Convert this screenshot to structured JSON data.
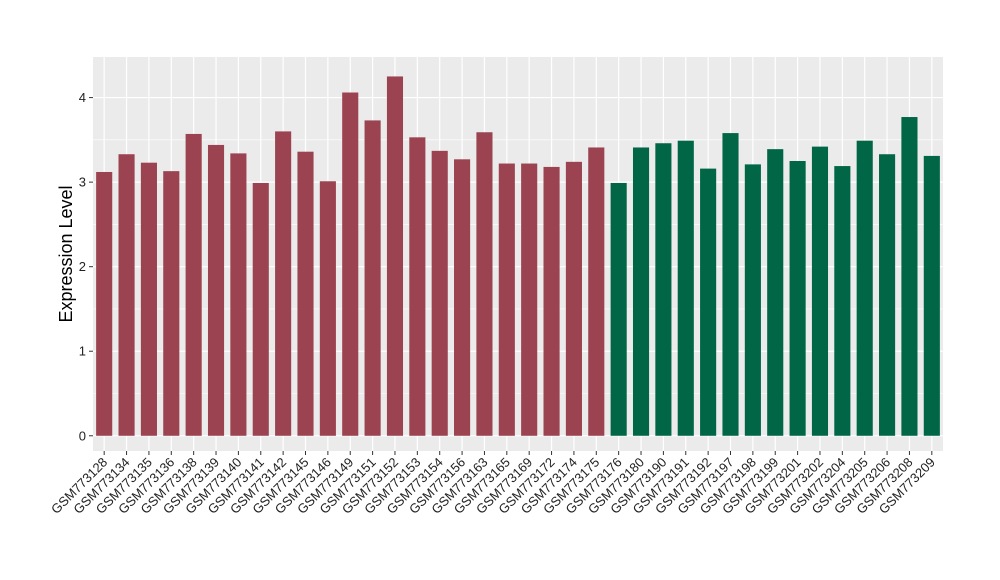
{
  "chart_data": {
    "type": "bar",
    "xlabel": "",
    "ylabel": "Expression Level",
    "ylim": [
      -0.18,
      4.48
    ],
    "yticks": [
      0,
      1,
      2,
      3,
      4
    ],
    "grid": true,
    "background": "#EBEBEB",
    "categories": [
      "GSM773128",
      "GSM773134",
      "GSM773135",
      "GSM773136",
      "GSM773138",
      "GSM773139",
      "GSM773140",
      "GSM773141",
      "GSM773142",
      "GSM773145",
      "GSM773146",
      "GSM773149",
      "GSM773151",
      "GSM773152",
      "GSM773153",
      "GSM773154",
      "GSM773156",
      "GSM773163",
      "GSM773165",
      "GSM773169",
      "GSM773172",
      "GSM773174",
      "GSM773175",
      "GSM773176",
      "GSM773180",
      "GSM773190",
      "GSM773191",
      "GSM773192",
      "GSM773197",
      "GSM773198",
      "GSM773199",
      "GSM773201",
      "GSM773202",
      "GSM773204",
      "GSM773205",
      "GSM773206",
      "GSM773208",
      "GSM773209"
    ],
    "values": [
      3.12,
      3.33,
      3.23,
      3.13,
      3.57,
      3.44,
      3.34,
      2.99,
      3.6,
      3.36,
      3.01,
      4.06,
      3.73,
      4.25,
      3.53,
      3.37,
      3.27,
      3.59,
      3.22,
      3.22,
      3.18,
      3.24,
      3.41,
      2.99,
      3.41,
      3.46,
      3.49,
      3.16,
      3.58,
      3.21,
      3.39,
      3.25,
      3.42,
      3.19,
      3.49,
      3.33,
      3.77,
      3.31
    ],
    "groups": [
      0,
      0,
      0,
      0,
      0,
      0,
      0,
      0,
      0,
      0,
      0,
      0,
      0,
      0,
      0,
      0,
      0,
      0,
      0,
      0,
      0,
      0,
      0,
      1,
      1,
      1,
      1,
      1,
      1,
      1,
      1,
      1,
      1,
      1,
      1,
      1,
      1,
      1
    ],
    "group_colors": [
      "#9B4350",
      "#006646"
    ]
  }
}
